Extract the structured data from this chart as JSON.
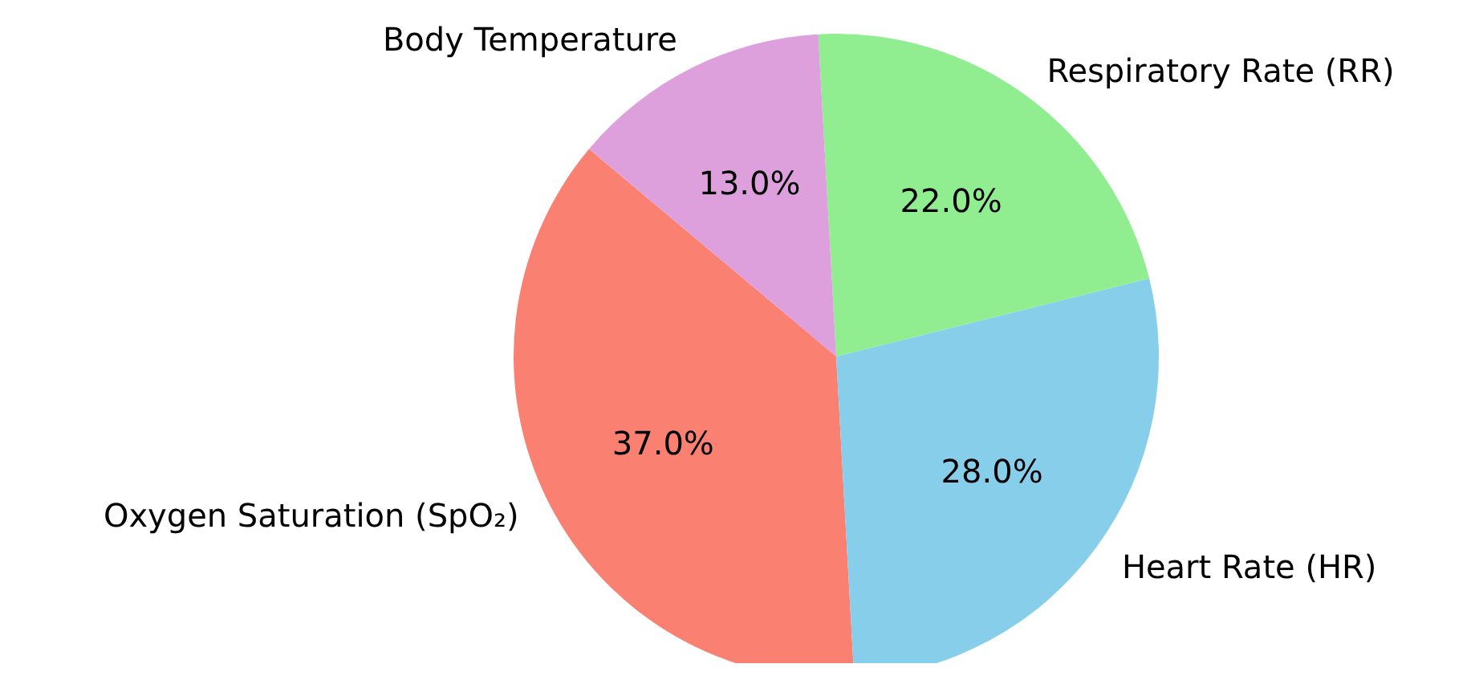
{
  "chart_data": {
    "type": "pie",
    "categories": [
      "Oxygen Saturation (SpO₂)",
      "Heart Rate (HR)",
      "Respiratory Rate (RR)",
      "Body Temperature"
    ],
    "values": [
      37,
      28,
      22,
      13
    ],
    "colors": [
      "#fa8072",
      "#87ceeb",
      "#90ee90",
      "#dda0dd"
    ],
    "value_labels": [
      "37.0%",
      "28.0%",
      "22.0%",
      "13.0%"
    ]
  }
}
